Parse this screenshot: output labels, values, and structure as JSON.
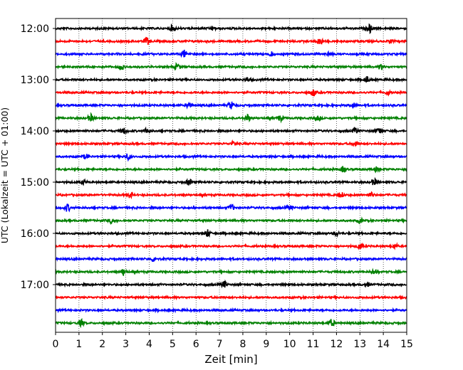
{
  "chart_data": {
    "type": "line",
    "title": "",
    "xlabel": "Zeit  [min]",
    "ylabel": "UTC (Lokalzeit = UTC + 01:00)",
    "xlim": [
      0,
      15
    ],
    "x_ticks": [
      "0",
      "1",
      "2",
      "3",
      "4",
      "5",
      "6",
      "7",
      "8",
      "9",
      "10",
      "11",
      "12",
      "13",
      "14",
      "15"
    ],
    "y_tick_labels": [
      "12:00",
      "13:00",
      "14:00",
      "15:00",
      "16:00",
      "17:00"
    ],
    "grid": "vertical dotted lines at each minute",
    "trace_colors": [
      "#000000",
      "#ff0000",
      "#0000ff",
      "#008000"
    ],
    "series": [
      {
        "start": "12:00",
        "color": "#000000",
        "events": [
          [
            5.0,
            0.6
          ],
          [
            6.7,
            0.4
          ],
          [
            13.4,
            0.8
          ]
        ]
      },
      {
        "start": "12:15",
        "color": "#ff0000",
        "events": [
          [
            3.9,
            0.7
          ],
          [
            11.3,
            0.8
          ],
          [
            14.3,
            0.4
          ]
        ]
      },
      {
        "start": "12:30",
        "color": "#0000ff",
        "events": [
          [
            5.5,
            0.7
          ],
          [
            9.2,
            0.4
          ],
          [
            11.7,
            0.4
          ]
        ]
      },
      {
        "start": "12:45",
        "color": "#008000",
        "events": [
          [
            2.8,
            0.6
          ],
          [
            5.2,
            0.6
          ],
          [
            13.9,
            0.5
          ]
        ]
      },
      {
        "start": "13:00",
        "color": "#000000",
        "events": [
          [
            8.2,
            0.4
          ],
          [
            13.3,
            0.6
          ]
        ]
      },
      {
        "start": "13:15",
        "color": "#ff0000",
        "events": [
          [
            11.0,
            0.7
          ],
          [
            14.2,
            0.4
          ]
        ]
      },
      {
        "start": "13:30",
        "color": "#0000ff",
        "events": [
          [
            5.7,
            0.6
          ],
          [
            7.5,
            0.7
          ],
          [
            12.7,
            0.5
          ]
        ]
      },
      {
        "start": "13:45",
        "color": "#008000",
        "events": [
          [
            1.5,
            0.7
          ],
          [
            8.2,
            0.7
          ],
          [
            9.6,
            0.5
          ],
          [
            11.2,
            0.4
          ]
        ]
      },
      {
        "start": "14:00",
        "color": "#000000",
        "events": [
          [
            2.9,
            0.6
          ],
          [
            3.9,
            0.6
          ],
          [
            12.8,
            0.6
          ],
          [
            13.8,
            0.6
          ]
        ]
      },
      {
        "start": "14:15",
        "color": "#ff0000",
        "events": [
          [
            7.6,
            0.4
          ],
          [
            12.8,
            0.6
          ]
        ]
      },
      {
        "start": "14:30",
        "color": "#0000ff",
        "events": [
          [
            1.3,
            0.4
          ],
          [
            3.1,
            0.6
          ]
        ]
      },
      {
        "start": "14:45",
        "color": "#008000",
        "events": [
          [
            12.3,
            0.6
          ],
          [
            13.7,
            0.4
          ]
        ]
      },
      {
        "start": "15:00",
        "color": "#000000",
        "events": [
          [
            1.2,
            0.4
          ],
          [
            5.7,
            0.6
          ],
          [
            13.6,
            0.6
          ]
        ]
      },
      {
        "start": "15:15",
        "color": "#ff0000",
        "events": [
          [
            3.2,
            0.5
          ],
          [
            12.2,
            0.5
          ],
          [
            13.5,
            0.4
          ]
        ]
      },
      {
        "start": "15:30",
        "color": "#0000ff",
        "events": [
          [
            0.5,
            0.7
          ],
          [
            7.5,
            0.6
          ],
          [
            10.0,
            0.4
          ]
        ]
      },
      {
        "start": "15:45",
        "color": "#008000",
        "events": [
          [
            2.4,
            0.5
          ],
          [
            13.0,
            0.4
          ]
        ]
      },
      {
        "start": "16:00",
        "color": "#000000",
        "events": [
          [
            6.5,
            0.7
          ],
          [
            12.0,
            0.4
          ]
        ]
      },
      {
        "start": "16:15",
        "color": "#ff0000",
        "events": [
          [
            13.0,
            0.6
          ],
          [
            14.5,
            0.4
          ]
        ]
      },
      {
        "start": "16:30",
        "color": "#0000ff",
        "events": [
          [
            4.2,
            0.5
          ]
        ]
      },
      {
        "start": "16:45",
        "color": "#008000",
        "events": [
          [
            2.9,
            0.6
          ],
          [
            13.6,
            0.5
          ]
        ]
      },
      {
        "start": "17:00",
        "color": "#000000",
        "events": [
          [
            7.2,
            0.6
          ],
          [
            13.3,
            0.4
          ]
        ]
      },
      {
        "start": "17:15",
        "color": "#ff0000",
        "events": []
      },
      {
        "start": "17:30",
        "color": "#0000ff",
        "events": []
      },
      {
        "start": "17:45",
        "color": "#008000",
        "events": [
          [
            1.1,
            0.6
          ],
          [
            11.8,
            0.7
          ]
        ]
      }
    ]
  }
}
